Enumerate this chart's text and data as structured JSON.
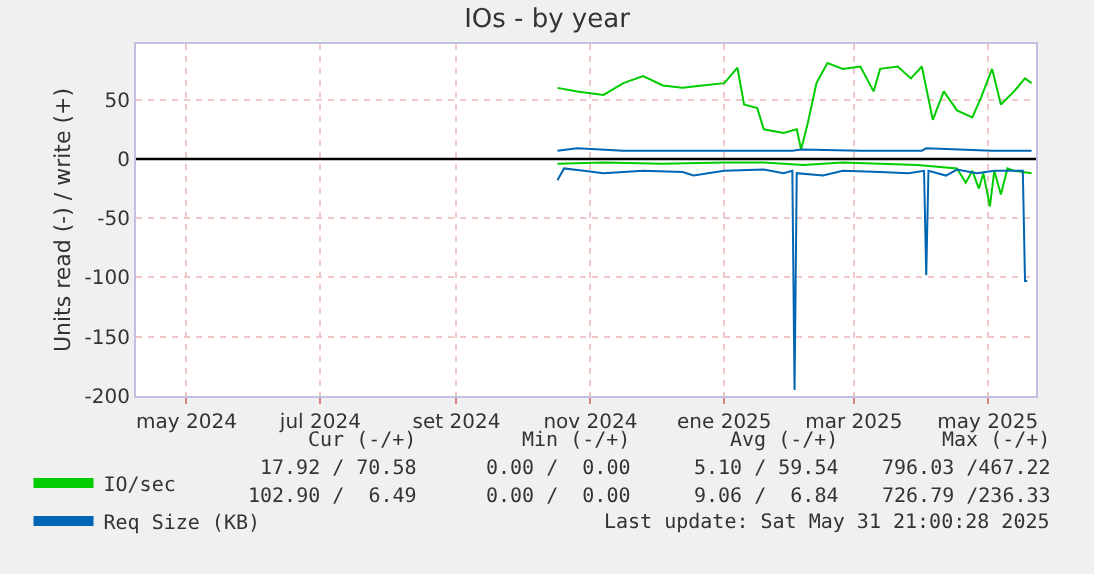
{
  "chart_data": {
    "type": "line",
    "title": "IOs - by year",
    "ylabel": "Units read (-) / write (+)",
    "xlim": [
      "2024-04-08",
      "2025-05-23"
    ],
    "xticks": [
      {
        "value": "2024-05-01",
        "label": "may 2024"
      },
      {
        "value": "2024-07-01",
        "label": "jul 2024"
      },
      {
        "value": "2024-09-01",
        "label": "set 2024"
      },
      {
        "value": "2024-11-01",
        "label": "nov 2024"
      },
      {
        "value": "2025-01-01",
        "label": "ene 2025"
      },
      {
        "value": "2025-03-01",
        "label": "mar 2025"
      },
      {
        "value": "2025-05-01",
        "label": "may 2025"
      }
    ],
    "ylim": [
      -200,
      97
    ],
    "yticks": [
      -200,
      -150,
      -100,
      -50,
      0,
      50
    ],
    "grid": true,
    "legend": "bottom left",
    "marker": "none",
    "line_style": "solid",
    "ref_lines": [
      {
        "axis": "y",
        "value": 0,
        "color": "#000000"
      }
    ],
    "series": [
      {
        "name": "IO/sec",
        "color": "#00cc00",
        "x": [
          "2024-10-17",
          "2024-10-26",
          "2024-11-07",
          "2024-11-16",
          "2024-11-25",
          "2024-12-04",
          "2024-12-13",
          "2024-12-22",
          "2025-01-01",
          "2025-01-07",
          "2025-01-10",
          "2025-01-16",
          "2025-01-19",
          "2025-01-28",
          "2025-02-03",
          "2025-02-05",
          "2025-02-08",
          "2025-02-12",
          "2025-02-17",
          "2025-02-24",
          "2025-03-04",
          "2025-03-10",
          "2025-03-13",
          "2025-03-21",
          "2025-03-27",
          "2025-04-01",
          "2025-04-06",
          "2025-04-11",
          "2025-04-17",
          "2025-04-24",
          "2025-04-28",
          "2025-05-03",
          "2025-05-07",
          "2025-05-13",
          "2025-05-18",
          "2025-05-21"
        ],
        "values": [
          60,
          57,
          54,
          64,
          70,
          62,
          60,
          62,
          64,
          77,
          46,
          43,
          25,
          22,
          25,
          8,
          30,
          64,
          81,
          76,
          78,
          57,
          76,
          78,
          68,
          78,
          33,
          57,
          41,
          35,
          52,
          76,
          46,
          57,
          68,
          64
        ]
      },
      {
        "color": "#00cc00",
        "x": [
          "2024-10-17",
          "2024-11-07",
          "2024-12-04",
          "2025-01-01",
          "2025-01-19",
          "2025-02-06",
          "2025-02-24",
          "2025-03-13",
          "2025-03-30",
          "2025-04-17",
          "2025-04-21",
          "2025-04-24",
          "2025-04-27",
          "2025-04-29",
          "2025-05-02",
          "2025-05-04",
          "2025-05-07",
          "2025-05-10",
          "2025-05-13",
          "2025-05-21"
        ],
        "values": [
          -4,
          -3,
          -4,
          -3,
          -3,
          -5,
          -3,
          -4,
          -5,
          -8,
          -20,
          -10,
          -25,
          -12,
          -40,
          -10,
          -30,
          -8,
          -10,
          -12
        ]
      },
      {
        "name": "Req Size (KB)",
        "color": "#0066b3",
        "x": [
          "2024-10-17",
          "2024-10-26",
          "2024-11-16",
          "2024-12-13",
          "2025-01-01",
          "2025-02-01",
          "2025-02-05",
          "2025-03-04",
          "2025-04-01",
          "2025-04-03",
          "2025-05-03",
          "2025-05-21"
        ],
        "values": [
          7,
          9,
          7,
          7,
          7,
          7,
          8,
          7,
          7,
          9,
          7,
          7
        ]
      },
      {
        "color": "#0066b3",
        "x": [
          "2024-10-17",
          "2024-10-20",
          "2024-10-29",
          "2024-11-07",
          "2024-11-25",
          "2024-12-13",
          "2024-12-18",
          "2025-01-01",
          "2025-01-19",
          "2025-01-28",
          "2025-02-01",
          "2025-02-02",
          "2025-02-03",
          "2025-02-15",
          "2025-02-24",
          "2025-03-13",
          "2025-03-26",
          "2025-04-02",
          "2025-04-03",
          "2025-04-04",
          "2025-04-12",
          "2025-04-17",
          "2025-04-26",
          "2025-05-04",
          "2025-05-17",
          "2025-05-18",
          "2025-05-19"
        ],
        "values": [
          -18,
          -8,
          -10,
          -12,
          -10,
          -11,
          -14,
          -10,
          -9,
          -12,
          -10,
          -195,
          -12,
          -14,
          -10,
          -11,
          -12,
          -10,
          -98,
          -10,
          -14,
          -9,
          -12,
          -10,
          -10,
          -103,
          -103
        ]
      }
    ],
    "annotations": [
      "Cur (-/+)",
      "Min (-/+)",
      "Avg (-/+)",
      "Max (-/+)",
      "17.92 / 70.58",
      "0.00 /  0.00",
      "5.10 / 59.54",
      "796.03 /467.22",
      "102.90 /  6.49",
      "0.00 /  0.00",
      "9.06 /  6.84",
      "726.79 /236.33",
      "Last update: Sat May 31 21:00:28 2025"
    ]
  }
}
